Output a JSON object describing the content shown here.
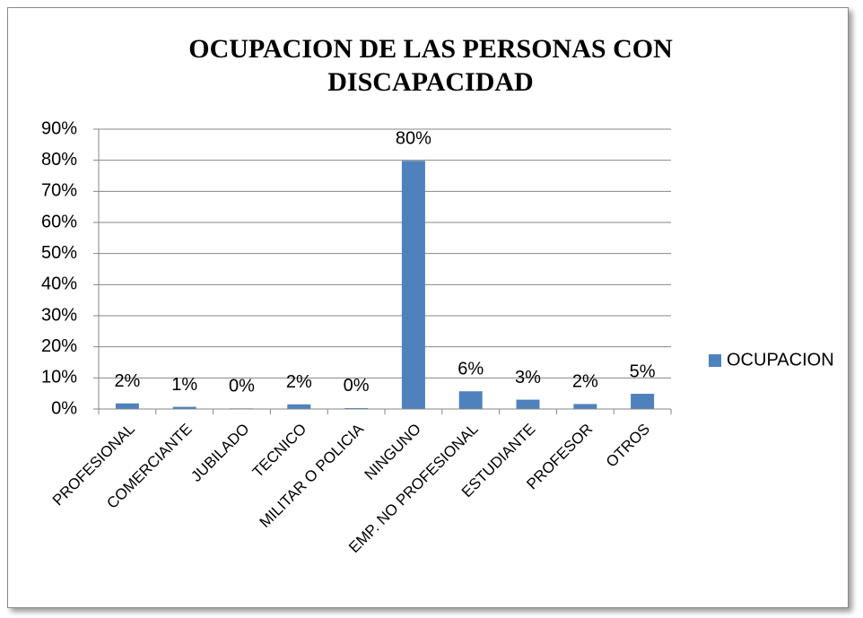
{
  "chart_data": {
    "type": "bar",
    "title": "OCUPACION DE LAS PERSONAS CON DISCAPACIDAD",
    "categories": [
      "PROFESIONAL",
      "COMERCIANTE",
      "JUBILADO",
      "TECNICO",
      "MILITAR O POLICIA",
      "NINGUNO",
      "EMP. NO PROFESIONAL",
      "ESTUDIANTE",
      "PROFESOR",
      "OTROS"
    ],
    "series": [
      {
        "name": "OCUPACION",
        "color": "#4f81bd",
        "values": [
          1.8,
          0.7,
          0.2,
          1.5,
          0.3,
          79.8,
          5.7,
          3.0,
          1.6,
          4.9
        ],
        "value_labels": [
          "2%",
          "1%",
          "0%",
          "2%",
          "0%",
          "80%",
          "6%",
          "3%",
          "2%",
          "5%"
        ]
      }
    ],
    "ylim": [
      0,
      90
    ],
    "yticks": [
      {
        "value": 0,
        "label": "0%"
      },
      {
        "value": 10,
        "label": "10%"
      },
      {
        "value": 20,
        "label": "20%"
      },
      {
        "value": 30,
        "label": "30%"
      },
      {
        "value": 40,
        "label": "40%"
      },
      {
        "value": 50,
        "label": "50%"
      },
      {
        "value": 60,
        "label": "60%"
      },
      {
        "value": 70,
        "label": "70%"
      },
      {
        "value": 80,
        "label": "80%"
      },
      {
        "value": 90,
        "label": "90%"
      }
    ],
    "grid": true,
    "legend": "right"
  }
}
